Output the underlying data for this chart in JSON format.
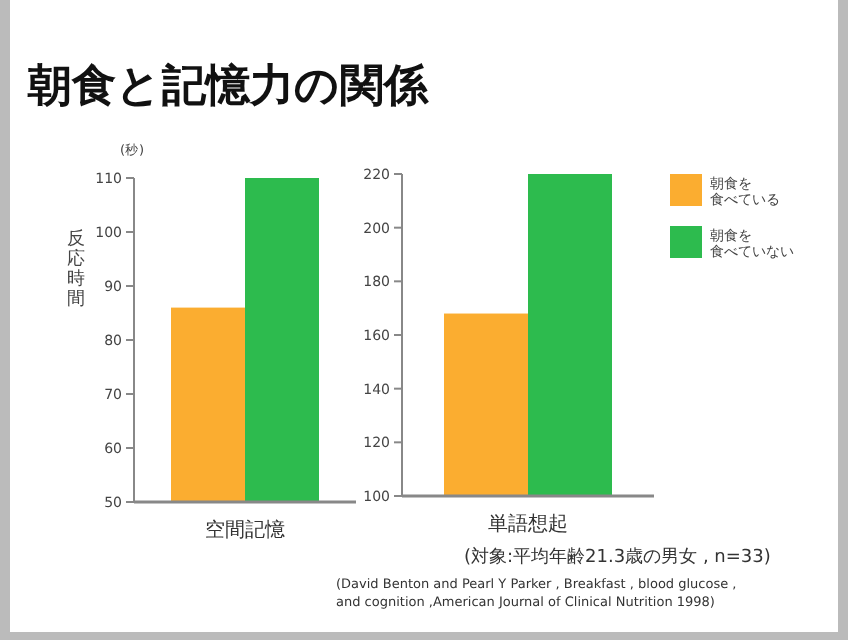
{
  "chart_data": [
    {
      "type": "bar",
      "title": "朝食と記憶力の関係",
      "ylabel": "反応時間",
      "annotations": [
        "(秒)"
      ],
      "categories": [
        "空間記憶"
      ],
      "ylim": [
        50,
        110
      ],
      "yticks": [
        50,
        60,
        70,
        80,
        90,
        100,
        110
      ],
      "legend": false,
      "grid": false,
      "series": [
        {
          "color": "#fbad30",
          "values": [
            86
          ]
        },
        {
          "color": "#2dbb4e",
          "values": [
            110
          ]
        }
      ]
    },
    {
      "type": "bar",
      "categories": [
        "単語想起"
      ],
      "ylim": [
        100,
        220
      ],
      "yticks": [
        100,
        120,
        140,
        160,
        180,
        200,
        220
      ],
      "legend": "right",
      "grid": false,
      "annotations": [
        "(対象:平均年齢21.3歳の男女 , n=33)",
        "(David Benton and Pearl Y Parker , Breakfast , blood glucose ,\nand cognition ,American Journal of Clinical Nutrition 1998)"
      ],
      "series": [
        {
          "name": "朝食を食べている",
          "color": "#fbad30",
          "values": [
            168
          ]
        },
        {
          "name": "朝食を食べていない",
          "color": "#2dbb4e",
          "values": [
            220
          ]
        }
      ]
    }
  ]
}
